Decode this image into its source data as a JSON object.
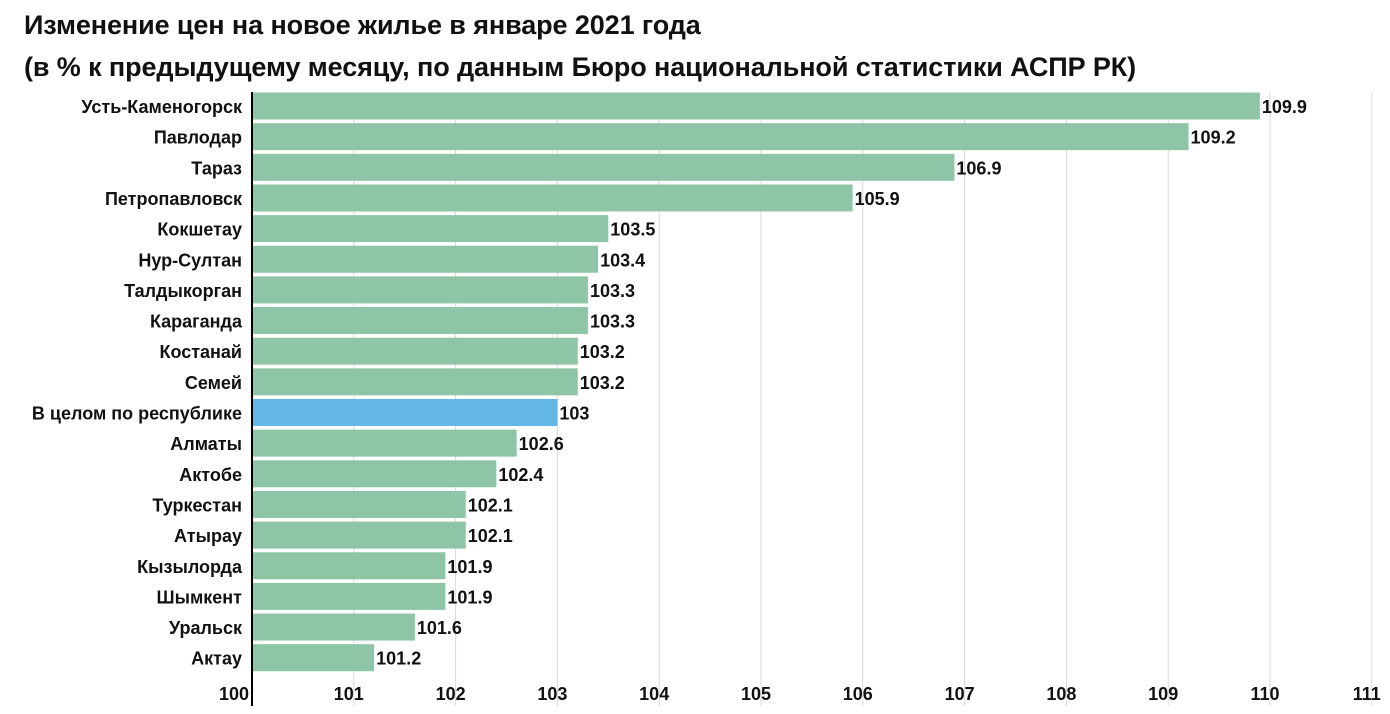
{
  "title": "Изменение цен на новое жилье в январе 2021 года",
  "subtitle": "(в % к предыдущему месяцу, по данным Бюро национальной статистики АСПР РК)",
  "colors": {
    "bar": "#8fc5a7",
    "highlight": "#63b8e6",
    "grid": "#d9d9d9",
    "axis": "#000000",
    "text": "#111111"
  },
  "chart_data": {
    "type": "bar",
    "orientation": "horizontal",
    "title": "Изменение цен на новое жилье в январе 2021 года",
    "subtitle": "(в % к предыдущему месяцу, по данным Бюро национальной статистики АСПР РК)",
    "categories": [
      "Усть-Каменогорск",
      "Павлодар",
      "Тараз",
      "Петропавловск",
      "Кокшетау",
      "Нур-Султан",
      "Талдыкорган",
      "Караганда",
      "Костанай",
      "Семей",
      "В целом по республике",
      "Алматы",
      "Актобе",
      "Туркестан",
      "Атырау",
      "Кызылорда",
      "Шымкент",
      "Уральск",
      "Актау"
    ],
    "values": [
      109.9,
      109.2,
      106.9,
      105.9,
      103.5,
      103.4,
      103.3,
      103.3,
      103.2,
      103.2,
      103,
      102.6,
      102.4,
      102.1,
      102.1,
      101.9,
      101.9,
      101.6,
      101.2
    ],
    "value_labels": [
      "109.9",
      "109.2",
      "106.9",
      "105.9",
      "103.5",
      "103.4",
      "103.3",
      "103.3",
      "103.2",
      "103.2",
      "103",
      "102.6",
      "102.4",
      "102.1",
      "102.1",
      "101.9",
      "101.9",
      "101.6",
      "101.2"
    ],
    "highlight_category": "В целом по республике",
    "xlim": [
      100,
      111
    ],
    "xticks": [
      "100",
      "101",
      "102",
      "103",
      "104",
      "105",
      "106",
      "107",
      "108",
      "109",
      "110",
      "111"
    ],
    "xlabel": "",
    "ylabel": "",
    "grid": true,
    "legend": "none"
  }
}
